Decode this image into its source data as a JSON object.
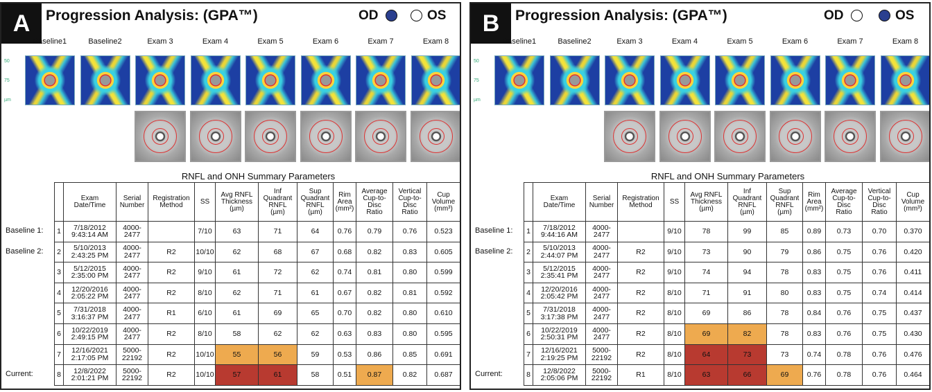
{
  "panels": [
    {
      "label": "A",
      "title": "Progression Analysis: (GPA™)",
      "od": "OD",
      "os": "OS",
      "selected_eye": "OD",
      "scale_labels": [
        "50",
        "75",
        "µm"
      ],
      "exams": [
        "Baseline1",
        "Baseline2",
        "Exam 3",
        "Exam 4",
        "Exam 5",
        "Exam 6",
        "Exam 7",
        "Exam 8"
      ],
      "table_title": "RNFL and ONH Summary Parameters",
      "headers": [
        null,
        "Exam\nDate/Time",
        "Serial\nNumber",
        "Registration\nMethod",
        "SS",
        "Avg RNFL\nThickness\n(µm)",
        "Inf\nQuadrant\nRNFL\n(µm)",
        "Sup\nQuadrant\nRNFL\n(µm)",
        "Rim\nArea\n(mm²)",
        "Average\nCup-to-\nDisc\nRatio",
        "Vertical\nCup-to-\nDisc\nRatio",
        "Cup\nVolume\n(mm³)"
      ],
      "row_labels": [
        "Baseline 1:",
        "Baseline 2:",
        null,
        null,
        null,
        null,
        null,
        "Current:"
      ],
      "rows": [
        [
          "1",
          "7/18/2012\n9:43:14 AM",
          "4000-\n2477",
          null,
          "7/10",
          "63",
          "71",
          "64",
          "0.76",
          "0.79",
          "0.76",
          "0.523"
        ],
        [
          "2",
          "5/10/2013\n2:43:25 PM",
          "4000-\n2477",
          "R2",
          "10/10",
          "62",
          "68",
          "67",
          "0.68",
          "0.82",
          "0.83",
          "0.605"
        ],
        [
          "3",
          "5/12/2015\n2:35:00 PM",
          "4000-\n2477",
          "R2",
          "9/10",
          "61",
          "72",
          "62",
          "0.74",
          "0.81",
          "0.80",
          "0.599"
        ],
        [
          "4",
          "12/20/2016\n2:05:22 PM",
          "4000-\n2477",
          "R2",
          "8/10",
          "62",
          "71",
          "61",
          "0.67",
          "0.82",
          "0.81",
          "0.592"
        ],
        [
          "5",
          "7/31/2018\n3:16:37 PM",
          "4000-\n2477",
          "R1",
          "6/10",
          "61",
          "69",
          "65",
          "0.70",
          "0.82",
          "0.80",
          "0.610"
        ],
        [
          "6",
          "10/22/2019\n2:49:15 PM",
          "4000-\n2477",
          "R2",
          "8/10",
          "58",
          "62",
          "62",
          "0.63",
          "0.83",
          "0.80",
          "0.595"
        ],
        [
          "7",
          "12/16/2021\n2:17:05 PM",
          "5000-\n22192",
          "R2",
          "10/10",
          "55",
          "56",
          "59",
          "0.53",
          "0.86",
          "0.85",
          "0.691"
        ],
        [
          "8",
          "12/8/2022\n2:01:21 PM",
          "5000-\n22192",
          "R2",
          "10/10",
          "57",
          "61",
          "58",
          "0.51",
          "0.87",
          "0.82",
          "0.687"
        ]
      ],
      "highlights": [
        {
          "row": 6,
          "col": 5,
          "color": "#eeaa4f"
        },
        {
          "row": 6,
          "col": 6,
          "color": "#eeaa4f"
        },
        {
          "row": 7,
          "col": 5,
          "color": "#b83a30"
        },
        {
          "row": 7,
          "col": 6,
          "color": "#b83a30"
        },
        {
          "row": 7,
          "col": 9,
          "color": "#eeaa4f"
        }
      ]
    },
    {
      "label": "B",
      "title": "Progression Analysis: (GPA™)",
      "od": "OD",
      "os": "OS",
      "selected_eye": "OS",
      "scale_labels": [
        "50",
        "75",
        "µm"
      ],
      "exams": [
        "Baseline1",
        "Baseline2",
        "Exam 3",
        "Exam 4",
        "Exam 5",
        "Exam 6",
        "Exam 7",
        "Exam 8"
      ],
      "table_title": "RNFL and ONH Summary Parameters",
      "headers": [
        null,
        "Exam\nDate/Time",
        "Serial\nNumber",
        "Registration\nMethod",
        "SS",
        "Avg RNFL\nThickness\n(µm)",
        "Inf\nQuadrant\nRNFL\n(µm)",
        "Sup\nQuadrant\nRNFL\n(µm)",
        "Rim\nArea\n(mm²)",
        "Average\nCup-to-\nDisc\nRatio",
        "Vertical\nCup-to-\nDisc\nRatio",
        "Cup\nVolume\n(mm³)"
      ],
      "row_labels": [
        "Baseline 1:",
        "Baseline 2:",
        null,
        null,
        null,
        null,
        null,
        "Current:"
      ],
      "rows": [
        [
          "1",
          "7/18/2012\n9:44:16 AM",
          "4000-\n2477",
          null,
          "9/10",
          "78",
          "99",
          "85",
          "0.89",
          "0.73",
          "0.70",
          "0.370"
        ],
        [
          "2",
          "5/10/2013\n2:44:07 PM",
          "4000-\n2477",
          "R2",
          "9/10",
          "73",
          "90",
          "79",
          "0.86",
          "0.75",
          "0.76",
          "0.420"
        ],
        [
          "3",
          "5/12/2015\n2:35:41 PM",
          "4000-\n2477",
          "R2",
          "9/10",
          "74",
          "94",
          "78",
          "0.83",
          "0.75",
          "0.76",
          "0.411"
        ],
        [
          "4",
          "12/20/2016\n2:05:42 PM",
          "4000-\n2477",
          "R2",
          "8/10",
          "71",
          "91",
          "80",
          "0.83",
          "0.75",
          "0.74",
          "0.414"
        ],
        [
          "5",
          "7/31/2018\n3:17:38 PM",
          "4000-\n2477",
          "R2",
          "8/10",
          "69",
          "86",
          "78",
          "0.84",
          "0.76",
          "0.75",
          "0.437"
        ],
        [
          "6",
          "10/22/2019\n2:50:31 PM",
          "4000-\n2477",
          "R2",
          "8/10",
          "69",
          "82",
          "78",
          "0.83",
          "0.76",
          "0.75",
          "0.430"
        ],
        [
          "7",
          "12/16/2021\n2:19:25 PM",
          "5000-\n22192",
          "R2",
          "8/10",
          "64",
          "73",
          "73",
          "0.74",
          "0.78",
          "0.76",
          "0.476"
        ],
        [
          "8",
          "12/8/2022\n2:05:06 PM",
          "5000-\n22192",
          "R1",
          "8/10",
          "63",
          "66",
          "69",
          "0.76",
          "0.78",
          "0.76",
          "0.464"
        ]
      ],
      "highlights": [
        {
          "row": 5,
          "col": 5,
          "color": "#eeaa4f"
        },
        {
          "row": 5,
          "col": 6,
          "color": "#eeaa4f"
        },
        {
          "row": 6,
          "col": 5,
          "color": "#b83a30"
        },
        {
          "row": 6,
          "col": 6,
          "color": "#b83a30"
        },
        {
          "row": 7,
          "col": 5,
          "color": "#b83a30"
        },
        {
          "row": 7,
          "col": 6,
          "color": "#b83a30"
        },
        {
          "row": 7,
          "col": 7,
          "color": "#eeaa4f"
        }
      ]
    }
  ]
}
